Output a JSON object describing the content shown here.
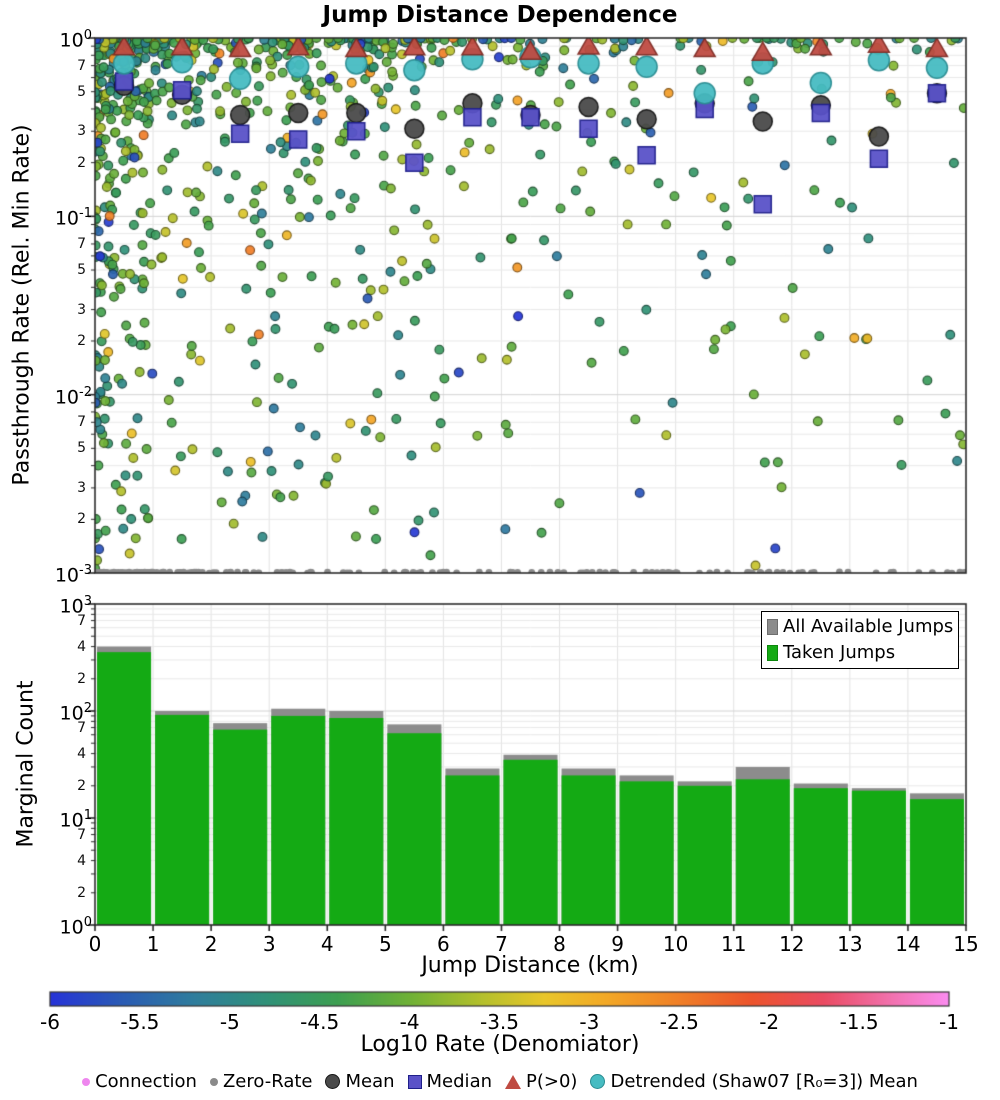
{
  "title": "Jump Distance Dependence",
  "chart_data": [
    {
      "id": "passthrough_scatter",
      "type": "scatter",
      "ylabel": "Passthrough Rate (Rel. Min Rate)",
      "yscale": "log",
      "ylim": [
        0.001,
        1
      ],
      "xlim": [
        0,
        15
      ],
      "grid": true,
      "y_major_exponents": [
        0,
        -1,
        -2,
        -3
      ],
      "y_minor_mantissas": [
        7,
        5,
        3,
        2
      ],
      "y_minor_decades": [
        -1,
        -2,
        -3
      ],
      "bin_centers": [
        0.5,
        1.5,
        2.5,
        3.5,
        4.5,
        5.5,
        6.5,
        7.5,
        8.5,
        9.5,
        10.5,
        11.5,
        12.5,
        13.5,
        14.5
      ],
      "summary_series": [
        {
          "name": "Mean",
          "marker": "circle",
          "size": 19,
          "color": "#4a4a4a",
          "edge": "#161616",
          "values": [
            0.54,
            0.48,
            0.37,
            0.38,
            0.38,
            0.31,
            0.43,
            0.37,
            0.41,
            0.35,
            0.43,
            0.34,
            0.42,
            0.28,
            0.49
          ]
        },
        {
          "name": "Median",
          "marker": "square",
          "size": 17,
          "color": "#5a52c8",
          "edge": "#1f1f8a",
          "values": [
            0.57,
            0.51,
            0.29,
            0.27,
            0.3,
            0.2,
            0.36,
            0.36,
            0.31,
            0.22,
            0.4,
            0.117,
            0.38,
            0.21,
            0.49
          ]
        },
        {
          "name": "Detrended (Shaw07 [R₀=3]) Mean",
          "marker": "circle",
          "size": 21,
          "color": "#47bcc2",
          "edge": "#2a8c91",
          "values": [
            0.72,
            0.73,
            0.59,
            0.69,
            0.72,
            0.66,
            0.76,
            0.78,
            0.72,
            0.69,
            0.49,
            0.72,
            0.56,
            0.75,
            0.68
          ]
        },
        {
          "name": "P(>0)",
          "marker": "triangle",
          "size": 21,
          "color": "#bf4b42",
          "edge": "#7f2d26",
          "values": [
            0.88,
            0.88,
            0.86,
            0.88,
            0.86,
            0.88,
            0.88,
            0.83,
            0.89,
            0.88,
            0.86,
            0.82,
            0.88,
            0.91,
            0.86
          ]
        }
      ],
      "zero_rate": {
        "label": "Zero-Rate",
        "color": "#8a8a8a",
        "y_value": 0.001,
        "count": 170,
        "left_bias": 2.1,
        "radius": 3.4
      },
      "background_scatter": {
        "seed": 20240917,
        "counts_per_bin": [
          355,
          92,
          67,
          90,
          86,
          62,
          25,
          35,
          25,
          22,
          20,
          23,
          19,
          18,
          15
        ],
        "y_log_range": [
          -3,
          0
        ],
        "top_concentration": 3.2,
        "color_center": -4.35,
        "color_spread": 1.1,
        "blue_fraction": 0.05,
        "warm_fraction": 0.05,
        "point_radius": 4.4
      }
    },
    {
      "id": "marginal_hist",
      "type": "bar",
      "ylabel": "Marginal Count",
      "xlabel": "Jump Distance (km)",
      "yscale": "log",
      "ylim": [
        1,
        1000
      ],
      "xlim": [
        0,
        15
      ],
      "grid": true,
      "y_major_exponents": [
        3,
        2,
        1,
        0
      ],
      "y_minor_mantissas": [
        7,
        4,
        2
      ],
      "y_minor_decades": [
        2,
        1,
        0
      ],
      "x_ticks": [
        0,
        1,
        2,
        3,
        4,
        5,
        6,
        7,
        8,
        9,
        10,
        11,
        12,
        13,
        14,
        15
      ],
      "bin_edges": [
        0,
        1,
        2,
        3,
        4,
        5,
        6,
        7,
        8,
        9,
        10,
        11,
        12,
        13,
        14,
        15
      ],
      "legend_position": "upper right",
      "series": [
        {
          "name": "All Available Jumps",
          "color": "#8c8c8c",
          "values": [
            400,
            100,
            77,
            105,
            100,
            75,
            29,
            39,
            29,
            25,
            22,
            30,
            21,
            19,
            17
          ]
        },
        {
          "name": "Taken Jumps",
          "color": "#14aa14",
          "values": [
            355,
            92,
            67,
            90,
            86,
            62,
            25,
            35,
            25,
            22,
            20,
            23,
            19,
            18,
            15
          ]
        }
      ]
    },
    {
      "id": "rate_colorbar",
      "type": "colorbar",
      "label": "Log10 Rate (Denomiator)",
      "range": [
        -6,
        -1
      ],
      "ticks": [
        -6,
        -5.5,
        -5,
        -4.5,
        -4,
        -3.5,
        -3,
        -2.5,
        -2,
        -1.5,
        -1
      ],
      "stops": [
        {
          "pos": 0.0,
          "color": "#2633d8"
        },
        {
          "pos": 0.08,
          "color": "#2a5bb4"
        },
        {
          "pos": 0.16,
          "color": "#2f7d9d"
        },
        {
          "pos": 0.24,
          "color": "#309179"
        },
        {
          "pos": 0.32,
          "color": "#3d9f51"
        },
        {
          "pos": 0.4,
          "color": "#6fb136"
        },
        {
          "pos": 0.48,
          "color": "#b4c02c"
        },
        {
          "pos": 0.55,
          "color": "#e9c62a"
        },
        {
          "pos": 0.62,
          "color": "#f3a826"
        },
        {
          "pos": 0.7,
          "color": "#f07f27"
        },
        {
          "pos": 0.78,
          "color": "#ec542c"
        },
        {
          "pos": 0.86,
          "color": "#ea4b62"
        },
        {
          "pos": 0.93,
          "color": "#f16fa8"
        },
        {
          "pos": 1.0,
          "color": "#fb8cf0"
        }
      ]
    }
  ],
  "figure_legend": {
    "items": [
      {
        "label": "Connection",
        "marker": "dot",
        "color": "#ee86ee",
        "edge": "#d06ad0"
      },
      {
        "label": "Zero-Rate",
        "marker": "dot",
        "color": "#8a8a8a",
        "edge": "#6f6f6f"
      },
      {
        "label": "Mean",
        "marker": "circle",
        "color": "#4a4a4a",
        "edge": "#161616"
      },
      {
        "label": "Median",
        "marker": "square",
        "color": "#5a52c8",
        "edge": "#1f1f8a"
      },
      {
        "label": "P(>0)",
        "marker": "triangle",
        "color": "#bf4b42",
        "edge": "#7f2d26"
      },
      {
        "label": "Detrended (Shaw07 [R₀=3]) Mean",
        "marker": "circle",
        "color": "#47bcc2",
        "edge": "#2a8c91"
      }
    ]
  }
}
